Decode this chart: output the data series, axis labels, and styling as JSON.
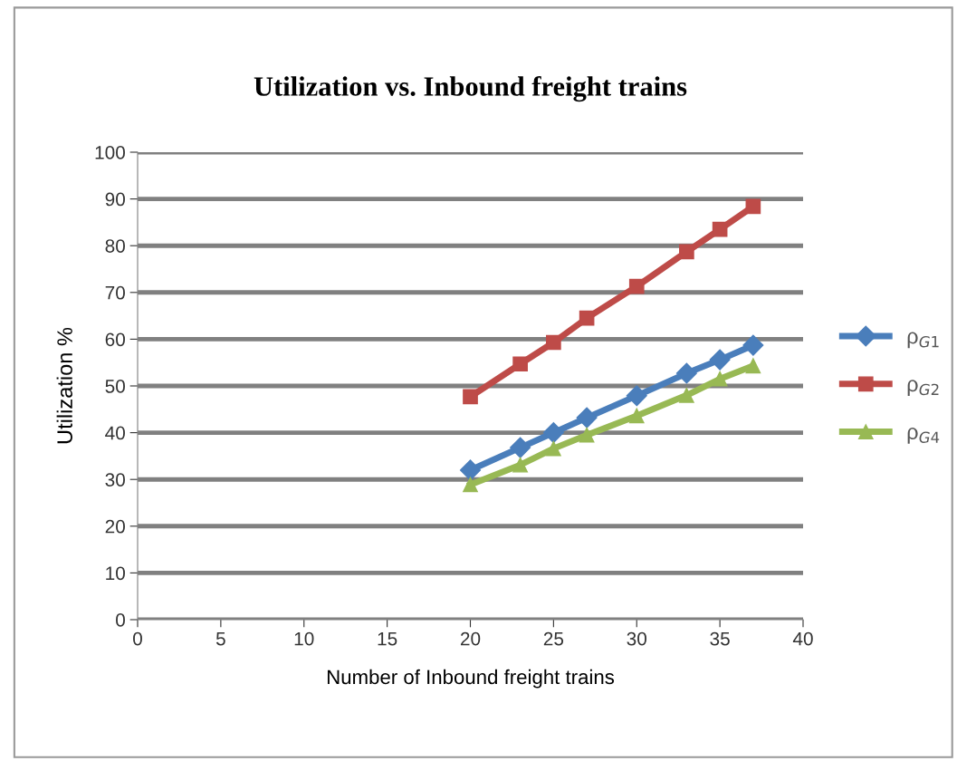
{
  "chart_data": {
    "type": "line",
    "title": "Utilization vs. Inbound freight trains",
    "xlabel": "Number of Inbound freight trains",
    "ylabel": "Utilization %",
    "x": [
      20,
      23,
      25,
      27,
      30,
      33,
      35,
      37
    ],
    "series": [
      {
        "name": "ρ$_{G1}$",
        "color": "#4a7ebb",
        "marker": "diamond",
        "values": [
          32,
          36.8,
          40,
          43.2,
          47.9,
          52.7,
          55.6,
          58.7
        ]
      },
      {
        "name": "ρ$_{G2}$",
        "color": "#be4b48",
        "marker": "square",
        "values": [
          47.7,
          54.7,
          59.3,
          64.5,
          71.3,
          78.7,
          83.5,
          88.4
        ]
      },
      {
        "name": "ρ$_{G4}$",
        "color": "#98b954",
        "marker": "triangle",
        "values": [
          28.9,
          33.1,
          36.6,
          39.5,
          43.6,
          48,
          51.5,
          54.3
        ]
      }
    ],
    "xlim": [
      0,
      40
    ],
    "xticks": [
      0,
      5,
      10,
      15,
      20,
      25,
      30,
      35,
      40
    ],
    "ylim": [
      0,
      100
    ],
    "yticks": [
      0,
      10,
      20,
      30,
      40,
      50,
      60,
      70,
      80,
      90,
      100
    ],
    "grid": "y",
    "legend": "right",
    "line_style": "solid"
  }
}
